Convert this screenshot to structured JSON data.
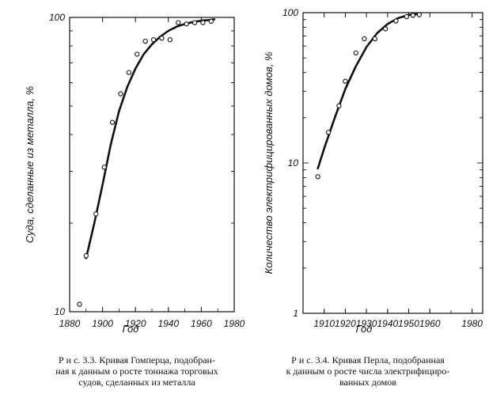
{
  "chart_data": [
    {
      "type": "scatter",
      "ylabel": "Суда, сделанные из металла, %",
      "xlabel": "Год",
      "y_scale": "log",
      "xlim": [
        1880,
        1980
      ],
      "ylim": [
        10,
        100
      ],
      "x_ticks": [
        "1880",
        "1900",
        "1920",
        "1940",
        "1960",
        "1980"
      ],
      "y_ticks": [
        "10",
        "100"
      ],
      "points_x": [
        1886,
        1890,
        1896,
        1901,
        1906,
        1911,
        1916,
        1921,
        1926,
        1931,
        1936,
        1941,
        1946,
        1951,
        1956,
        1961,
        1966
      ],
      "points_y": [
        10.6,
        15.5,
        21.5,
        31,
        44,
        55,
        65,
        75,
        83,
        84,
        85,
        84,
        96,
        95,
        96,
        96,
        97
      ],
      "curve_x": [
        1890,
        1895,
        1900,
        1905,
        1910,
        1915,
        1920,
        1925,
        1930,
        1935,
        1940,
        1945,
        1950,
        1955,
        1960,
        1965,
        1968
      ],
      "curve_y": [
        15.2,
        20,
        27,
        37,
        48,
        58,
        67,
        75,
        81,
        86,
        90,
        93,
        95,
        96.5,
        97.5,
        98,
        98.5
      ],
      "caption": [
        "Р и с. 3.3. Кривая Гомперца, подобран-",
        "ная к данным о росте тоннажа торговых",
        "судов, сделанных из металла"
      ]
    },
    {
      "type": "scatter",
      "ylabel": "Количество электрифицированных домов, %",
      "xlabel": "Год",
      "y_scale": "log",
      "xlim": [
        1900,
        1985
      ],
      "ylim": [
        1,
        100
      ],
      "x_ticks": [
        "1910",
        "1920",
        "1930",
        "1940",
        "1950",
        "1960",
        "1980"
      ],
      "y_ticks": [
        "1",
        "10",
        "100"
      ],
      "points_x": [
        1907,
        1912,
        1917,
        1920,
        1925,
        1929,
        1934,
        1939,
        1944,
        1949,
        1952,
        1955
      ],
      "points_y": [
        8.1,
        16,
        24,
        35,
        54,
        67,
        67,
        78,
        88,
        94,
        96,
        97
      ],
      "curve_x": [
        1907,
        1910,
        1915,
        1920,
        1925,
        1930,
        1935,
        1940,
        1945,
        1950,
        1955
      ],
      "curve_y": [
        9.2,
        12.5,
        20,
        31,
        44,
        59,
        73,
        84,
        92,
        96.5,
        98
      ],
      "caption": [
        "Р и с. 3.4. Кривая Перла, подобранная",
        "к данным о росте числа электрифициро-",
        "ванных домов"
      ]
    }
  ]
}
